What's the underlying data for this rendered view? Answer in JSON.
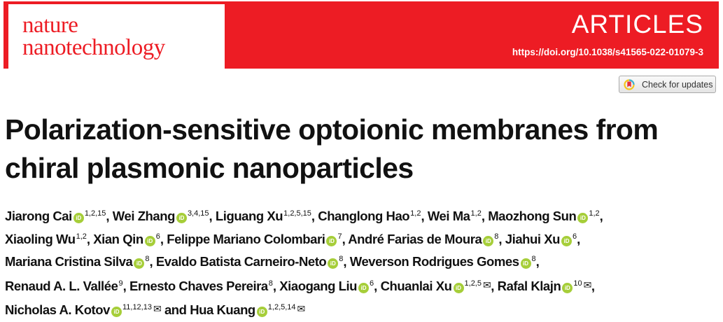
{
  "journal": {
    "logo_line1": "nature",
    "logo_line2": "nanotechnology",
    "section": "ARTICLES",
    "doi": "https://doi.org/10.1038/s41565-022-01079-3",
    "brand_color": "#ed1c24"
  },
  "check_updates": {
    "label": "Check for updates",
    "icon": "crossmark-icon"
  },
  "title": {
    "line1": "Polarization-sensitive optoionic membranes from",
    "line2": "chiral plasmonic nanoparticles"
  },
  "orcid_badge": {
    "text": "iD",
    "color": "#a6ce39"
  },
  "email_icon": "envelope-icon",
  "author_lines": [
    [
      {
        "name": "Jiarong Cai",
        "orcid": true,
        "affil": "1,2,15",
        "email": false,
        "sep": ", "
      },
      {
        "name": "Wei Zhang",
        "orcid": true,
        "affil": "3,4,15",
        "email": false,
        "sep": ", "
      },
      {
        "name": "Liguang Xu",
        "orcid": false,
        "affil": "1,2,5,15",
        "email": false,
        "sep": ", "
      },
      {
        "name": "Changlong Hao",
        "orcid": false,
        "affil": "1,2",
        "email": false,
        "sep": ", "
      },
      {
        "name": "Wei Ma",
        "orcid": false,
        "affil": "1,2",
        "email": false,
        "sep": ", "
      },
      {
        "name": "Maozhong Sun",
        "orcid": true,
        "affil": "1,2",
        "email": false,
        "sep": ","
      }
    ],
    [
      {
        "name": "Xiaoling Wu",
        "orcid": false,
        "affil": "1,2",
        "email": false,
        "sep": ", "
      },
      {
        "name": "Xian Qin",
        "orcid": true,
        "affil": "6",
        "email": false,
        "sep": ", "
      },
      {
        "name": "Felippe Mariano Colombari",
        "orcid": true,
        "affil": "7",
        "email": false,
        "sep": ", "
      },
      {
        "name": "André Farias de Moura",
        "orcid": true,
        "affil": "8",
        "email": false,
        "sep": ", "
      },
      {
        "name": "Jiahui Xu",
        "orcid": true,
        "affil": "6",
        "email": false,
        "sep": ","
      }
    ],
    [
      {
        "name": "Mariana Cristina Silva",
        "orcid": true,
        "affil": "8",
        "email": false,
        "sep": ", "
      },
      {
        "name": "Evaldo Batista Carneiro-Neto",
        "orcid": true,
        "affil": "8",
        "email": false,
        "sep": ", "
      },
      {
        "name": "Weverson Rodrigues Gomes",
        "orcid": true,
        "affil": "8",
        "email": false,
        "sep": ","
      }
    ],
    [
      {
        "name": "Renaud A. L. Vallée",
        "orcid": false,
        "affil": "9",
        "email": false,
        "sep": ", "
      },
      {
        "name": "Ernesto Chaves Pereira",
        "orcid": false,
        "affil": "8",
        "email": false,
        "sep": ", "
      },
      {
        "name": "Xiaogang Liu",
        "orcid": true,
        "affil": "6",
        "email": false,
        "sep": ", "
      },
      {
        "name": "Chuanlai Xu",
        "orcid": true,
        "affil": "1,2,5",
        "email": true,
        "sep": ", "
      },
      {
        "name": "Rafal Klajn",
        "orcid": true,
        "affil": "10",
        "email": true,
        "sep": ","
      }
    ],
    [
      {
        "name": "Nicholas A. Kotov",
        "orcid": true,
        "affil": "11,12,13",
        "email": true,
        "sep": " and "
      },
      {
        "name": "Hua Kuang",
        "orcid": true,
        "affil": "1,2,5,14",
        "email": true,
        "sep": ""
      }
    ]
  ]
}
